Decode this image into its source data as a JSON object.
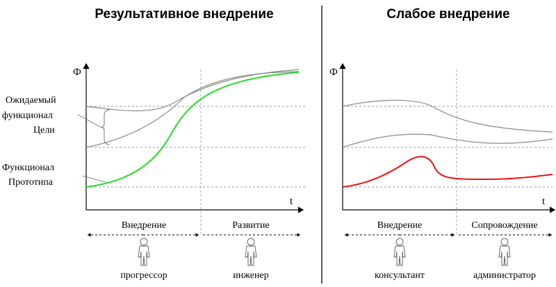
{
  "left": {
    "title": "Результативное внедрение",
    "y_axis": "Ф",
    "x_axis": "t",
    "label_goal": [
      "Ожидаемый",
      "функционал",
      "Цели"
    ],
    "label_proto": [
      "Функционал",
      "Прототипа"
    ],
    "phase_1": "Внедрение",
    "phase_2": "Развитие",
    "role_1": "прогрессор",
    "role_2": "инженер",
    "colors": {
      "main": "#22dd22",
      "bounds": "#8a8a8a"
    }
  },
  "right": {
    "title": "Слабое внедрение",
    "y_axis": "Ф",
    "x_axis": "t",
    "phase_1": "Внедрение",
    "phase_2": "Сопровождение",
    "role_1": "консультант",
    "role_2": "администратор",
    "colors": {
      "main": "#ee1111",
      "bounds": "#8a8a8a"
    }
  }
}
